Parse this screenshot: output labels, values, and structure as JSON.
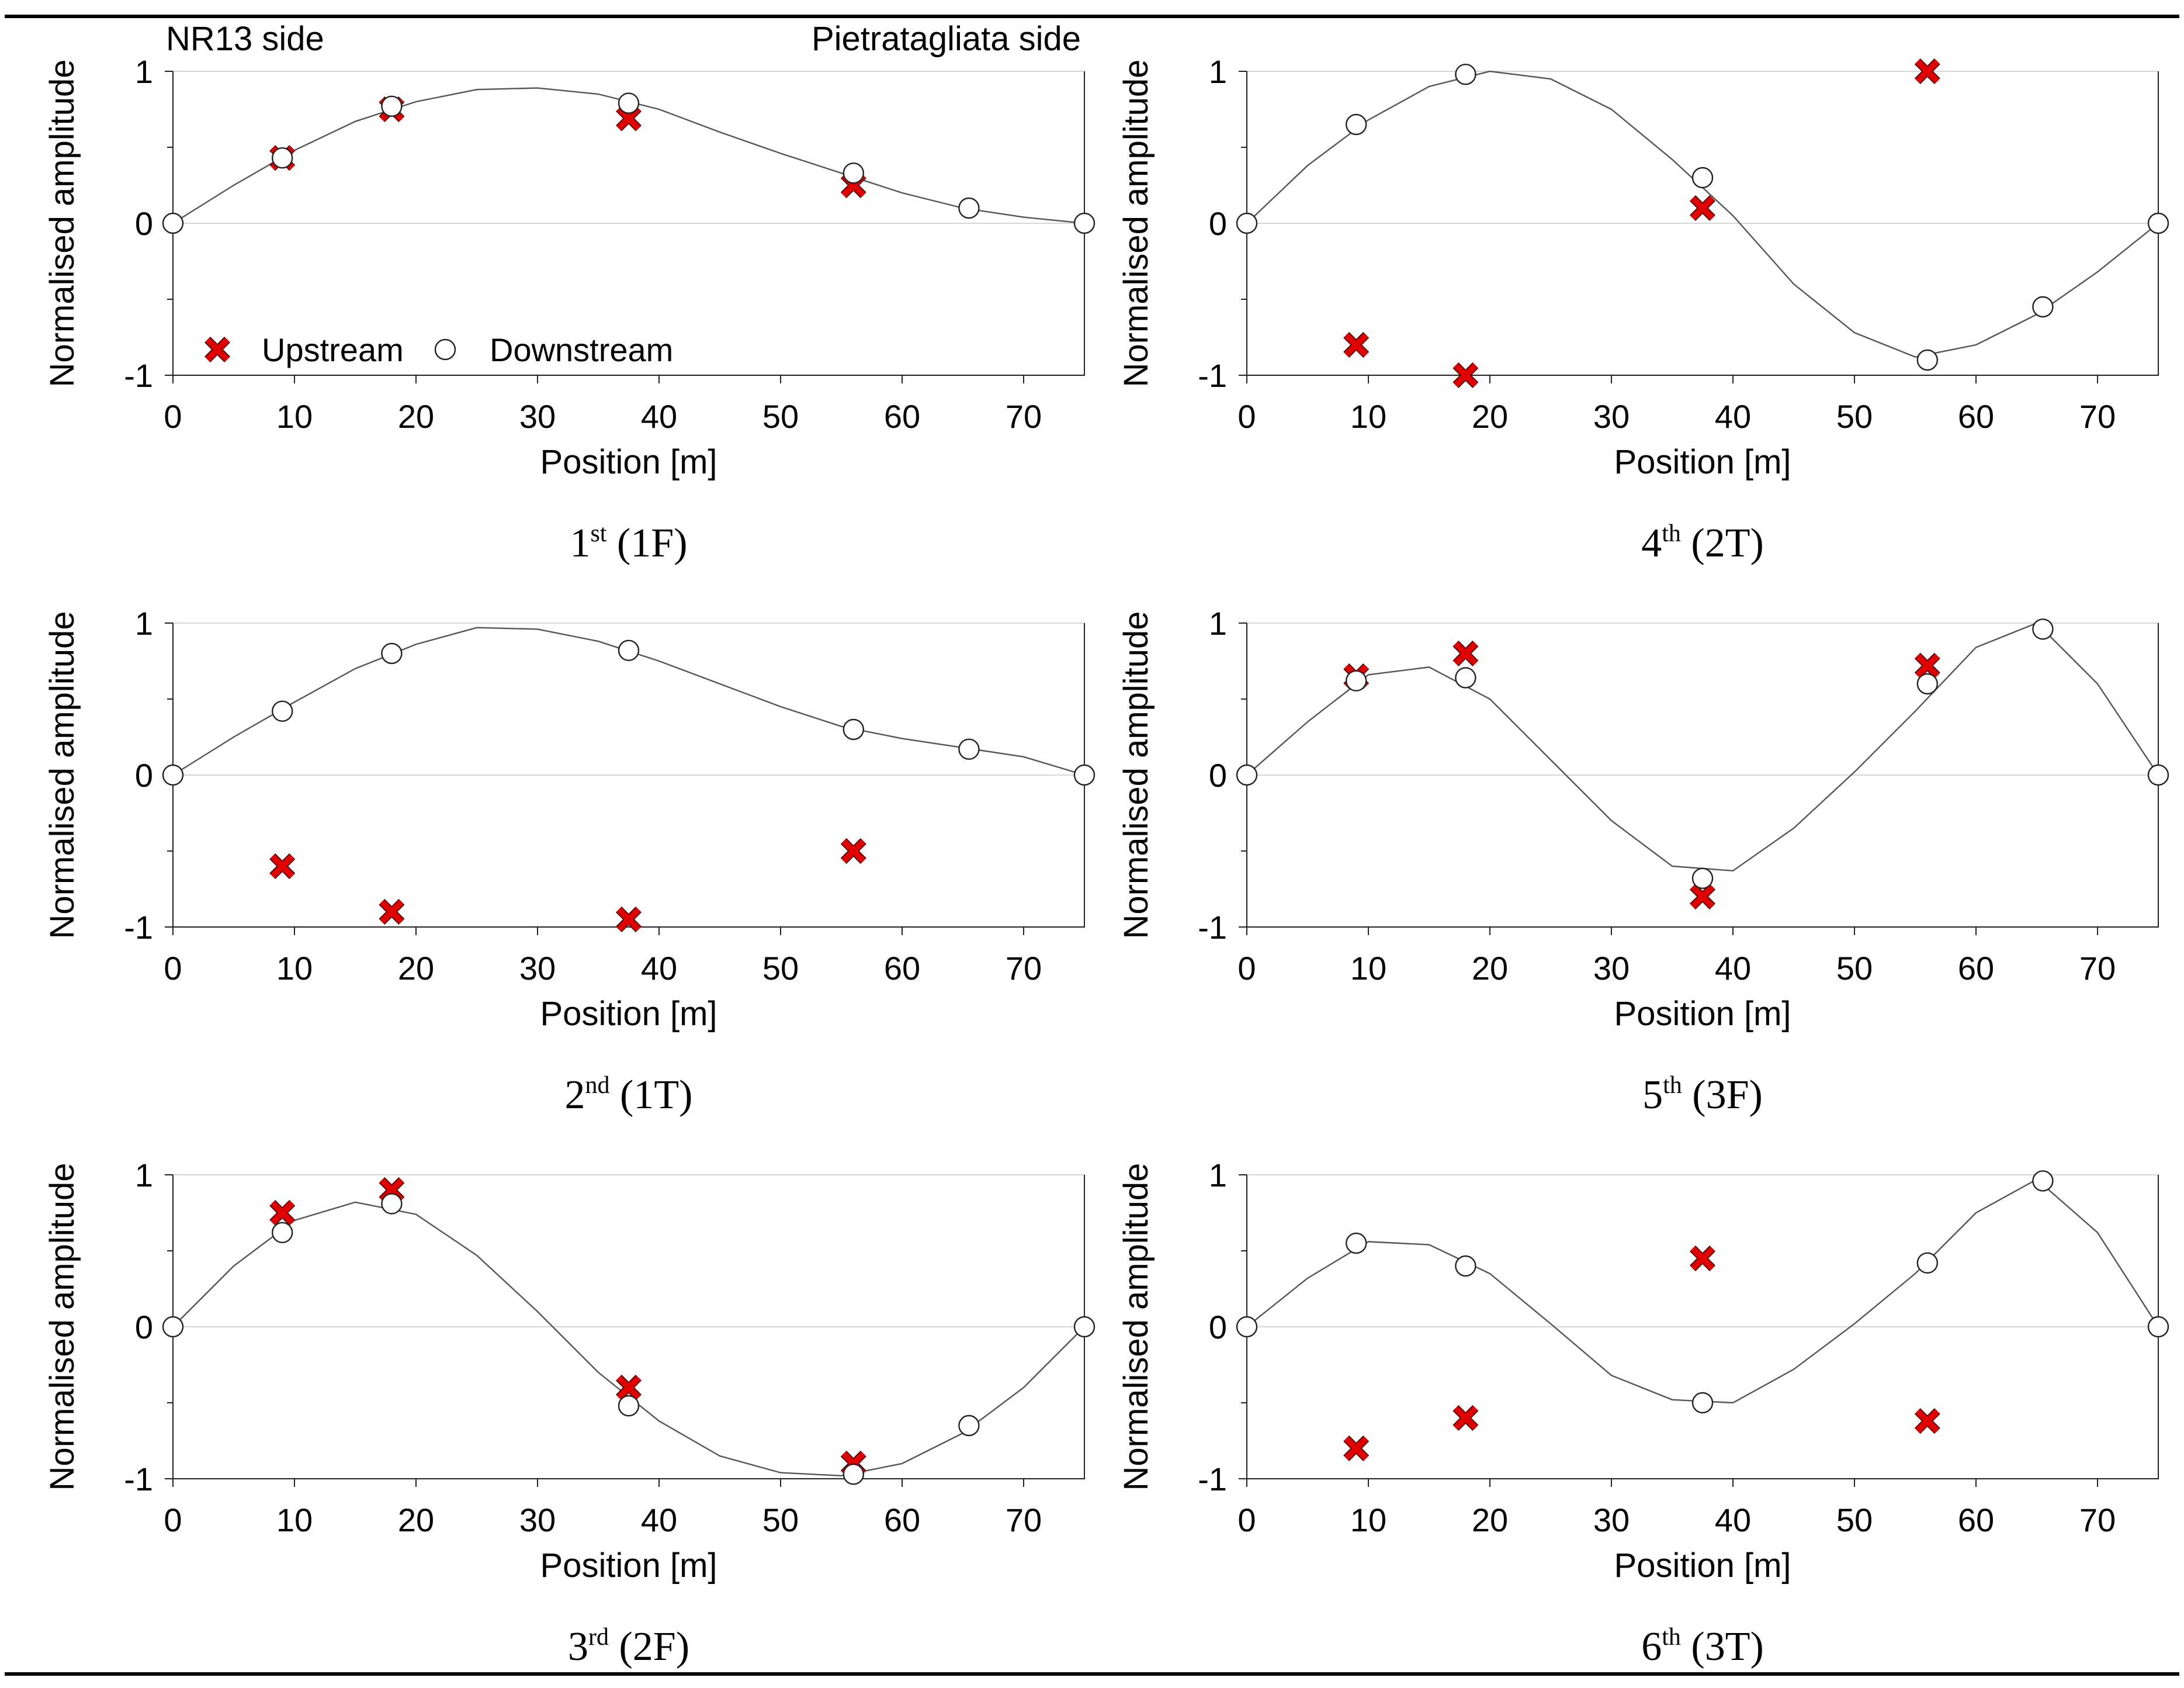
{
  "labels": {
    "left_side": "NR13 side",
    "right_side": "Pietratagliata side"
  },
  "legend": {
    "upstream": "Upstream",
    "downstream": "Downstream"
  },
  "colors": {
    "upstream": "#e00000",
    "downstream": "#ffffff",
    "curve": "#555555"
  },
  "chart_data": [
    {
      "type": "scatter",
      "caption_main": "1",
      "caption_sup": "st",
      "caption_rest": " (1F)",
      "xlabel": "Position  [m]",
      "ylabel": "Normalised amplitude",
      "xlim": [
        0,
        75
      ],
      "ylim": [
        -1,
        1
      ],
      "xticks": [
        0,
        10,
        20,
        30,
        40,
        50,
        60,
        70
      ],
      "yticks": [
        -1,
        0,
        1
      ],
      "upstream": [
        [
          9,
          0.43
        ],
        [
          18,
          0.75
        ],
        [
          37.5,
          0.69
        ],
        [
          56,
          0.25
        ]
      ],
      "downstream": [
        [
          0,
          0
        ],
        [
          9,
          0.43
        ],
        [
          18,
          0.77
        ],
        [
          37.5,
          0.79
        ],
        [
          56,
          0.33
        ],
        [
          65.5,
          0.1
        ],
        [
          75,
          0
        ]
      ],
      "curve": [
        [
          0,
          0
        ],
        [
          5,
          0.25
        ],
        [
          10,
          0.48
        ],
        [
          15,
          0.67
        ],
        [
          20,
          0.8
        ],
        [
          25,
          0.88
        ],
        [
          30,
          0.89
        ],
        [
          35,
          0.85
        ],
        [
          40,
          0.75
        ],
        [
          45,
          0.6
        ],
        [
          50,
          0.46
        ],
        [
          55,
          0.33
        ],
        [
          60,
          0.2
        ],
        [
          65,
          0.1
        ],
        [
          70,
          0.04
        ],
        [
          75,
          0
        ]
      ]
    },
    {
      "type": "scatter",
      "caption_main": "4",
      "caption_sup": "th",
      "caption_rest": " (2T)",
      "xlabel": "Position  [m]",
      "ylabel": "Normalised amplitude",
      "xlim": [
        0,
        75
      ],
      "ylim": [
        -1,
        1
      ],
      "xticks": [
        0,
        10,
        20,
        30,
        40,
        50,
        60,
        70
      ],
      "yticks": [
        -1,
        0,
        1
      ],
      "upstream": [
        [
          9,
          -0.8
        ],
        [
          18,
          -1.0
        ],
        [
          37.5,
          0.1
        ],
        [
          56,
          1.0
        ]
      ],
      "downstream": [
        [
          0,
          0
        ],
        [
          9,
          0.65
        ],
        [
          18,
          0.98
        ],
        [
          37.5,
          0.3
        ],
        [
          56,
          -0.9
        ],
        [
          65.5,
          -0.55
        ],
        [
          75,
          0
        ]
      ],
      "curve": [
        [
          0,
          0
        ],
        [
          5,
          0.38
        ],
        [
          10,
          0.68
        ],
        [
          15,
          0.9
        ],
        [
          20,
          1.0
        ],
        [
          25,
          0.95
        ],
        [
          30,
          0.75
        ],
        [
          35,
          0.42
        ],
        [
          40,
          0.05
        ],
        [
          45,
          -0.4
        ],
        [
          50,
          -0.72
        ],
        [
          55,
          -0.88
        ],
        [
          60,
          -0.8
        ],
        [
          65,
          -0.6
        ],
        [
          70,
          -0.32
        ],
        [
          75,
          0
        ]
      ]
    },
    {
      "type": "scatter",
      "caption_main": "2",
      "caption_sup": "nd",
      "caption_rest": " (1T)",
      "xlabel": "Position  [m]",
      "ylabel": "Normalised amplitude",
      "xlim": [
        0,
        75
      ],
      "ylim": [
        -1,
        1
      ],
      "xticks": [
        0,
        10,
        20,
        30,
        40,
        50,
        60,
        70
      ],
      "yticks": [
        -1,
        0,
        1
      ],
      "upstream": [
        [
          9,
          -0.6
        ],
        [
          18,
          -0.9
        ],
        [
          37.5,
          -0.95
        ],
        [
          56,
          -0.5
        ]
      ],
      "downstream": [
        [
          0,
          0
        ],
        [
          9,
          0.42
        ],
        [
          18,
          0.8
        ],
        [
          37.5,
          0.82
        ],
        [
          56,
          0.3
        ],
        [
          65.5,
          0.17
        ],
        [
          75,
          0
        ]
      ],
      "curve": [
        [
          0,
          0
        ],
        [
          5,
          0.25
        ],
        [
          10,
          0.48
        ],
        [
          15,
          0.7
        ],
        [
          20,
          0.86
        ],
        [
          25,
          0.97
        ],
        [
          30,
          0.96
        ],
        [
          35,
          0.88
        ],
        [
          40,
          0.75
        ],
        [
          45,
          0.6
        ],
        [
          50,
          0.45
        ],
        [
          55,
          0.32
        ],
        [
          60,
          0.24
        ],
        [
          65,
          0.18
        ],
        [
          70,
          0.12
        ],
        [
          75,
          0
        ]
      ]
    },
    {
      "type": "scatter",
      "caption_main": "5",
      "caption_sup": "th",
      "caption_rest": " (3F)",
      "xlabel": "Position  [m]",
      "ylabel": "Normalised amplitude",
      "xlim": [
        0,
        75
      ],
      "ylim": [
        -1,
        1
      ],
      "xticks": [
        0,
        10,
        20,
        30,
        40,
        50,
        60,
        70
      ],
      "yticks": [
        -1,
        0,
        1
      ],
      "upstream": [
        [
          9,
          0.65
        ],
        [
          18,
          0.8
        ],
        [
          37.5,
          -0.8
        ],
        [
          56,
          0.72
        ]
      ],
      "downstream": [
        [
          0,
          0
        ],
        [
          9,
          0.62
        ],
        [
          18,
          0.64
        ],
        [
          37.5,
          -0.68
        ],
        [
          56,
          0.6
        ],
        [
          65.5,
          0.96
        ],
        [
          75,
          0
        ]
      ],
      "curve": [
        [
          0,
          0
        ],
        [
          5,
          0.35
        ],
        [
          10,
          0.66
        ],
        [
          15,
          0.71
        ],
        [
          20,
          0.5
        ],
        [
          25,
          0.1
        ],
        [
          30,
          -0.3
        ],
        [
          35,
          -0.6
        ],
        [
          40,
          -0.63
        ],
        [
          45,
          -0.35
        ],
        [
          50,
          0.02
        ],
        [
          55,
          0.42
        ],
        [
          60,
          0.84
        ],
        [
          65,
          1.0
        ],
        [
          70,
          0.6
        ],
        [
          75,
          0
        ]
      ]
    },
    {
      "type": "scatter",
      "caption_main": "3",
      "caption_sup": "rd",
      "caption_rest": " (2F)",
      "xlabel": "Position  [m]",
      "ylabel": "Normalised amplitude",
      "xlim": [
        0,
        75
      ],
      "ylim": [
        -1,
        1
      ],
      "xticks": [
        0,
        10,
        20,
        30,
        40,
        50,
        60,
        70
      ],
      "yticks": [
        -1,
        0,
        1
      ],
      "upstream": [
        [
          9,
          0.75
        ],
        [
          18,
          0.9
        ],
        [
          37.5,
          -0.4
        ],
        [
          56,
          -0.9
        ]
      ],
      "downstream": [
        [
          0,
          0
        ],
        [
          9,
          0.62
        ],
        [
          18,
          0.81
        ],
        [
          37.5,
          -0.52
        ],
        [
          56,
          -0.97
        ],
        [
          65.5,
          -0.65
        ],
        [
          75,
          0
        ]
      ],
      "curve": [
        [
          0,
          0
        ],
        [
          5,
          0.4
        ],
        [
          10,
          0.7
        ],
        [
          15,
          0.82
        ],
        [
          20,
          0.74
        ],
        [
          25,
          0.47
        ],
        [
          30,
          0.1
        ],
        [
          35,
          -0.3
        ],
        [
          40,
          -0.62
        ],
        [
          45,
          -0.85
        ],
        [
          50,
          -0.96
        ],
        [
          55,
          -0.98
        ],
        [
          60,
          -0.9
        ],
        [
          65,
          -0.7
        ],
        [
          70,
          -0.4
        ],
        [
          75,
          0
        ]
      ]
    },
    {
      "type": "scatter",
      "caption_main": "6",
      "caption_sup": "th",
      "caption_rest": " (3T)",
      "xlabel": "Position  [m]",
      "ylabel": "Normalised amplitude",
      "xlim": [
        0,
        75
      ],
      "ylim": [
        -1,
        1
      ],
      "xticks": [
        0,
        10,
        20,
        30,
        40,
        50,
        60,
        70
      ],
      "yticks": [
        -1,
        0,
        1
      ],
      "upstream": [
        [
          9,
          -0.8
        ],
        [
          18,
          -0.6
        ],
        [
          37.5,
          0.45
        ],
        [
          56,
          -0.62
        ]
      ],
      "downstream": [
        [
          0,
          0
        ],
        [
          9,
          0.55
        ],
        [
          18,
          0.4
        ],
        [
          37.5,
          -0.5
        ],
        [
          56,
          0.42
        ],
        [
          65.5,
          0.96
        ],
        [
          75,
          0
        ]
      ],
      "curve": [
        [
          0,
          0
        ],
        [
          5,
          0.32
        ],
        [
          10,
          0.56
        ],
        [
          15,
          0.54
        ],
        [
          20,
          0.35
        ],
        [
          25,
          0.02
        ],
        [
          30,
          -0.32
        ],
        [
          35,
          -0.48
        ],
        [
          40,
          -0.5
        ],
        [
          45,
          -0.28
        ],
        [
          50,
          0.02
        ],
        [
          55,
          0.35
        ],
        [
          60,
          0.75
        ],
        [
          65,
          0.97
        ],
        [
          70,
          0.62
        ],
        [
          75,
          0
        ]
      ]
    }
  ]
}
